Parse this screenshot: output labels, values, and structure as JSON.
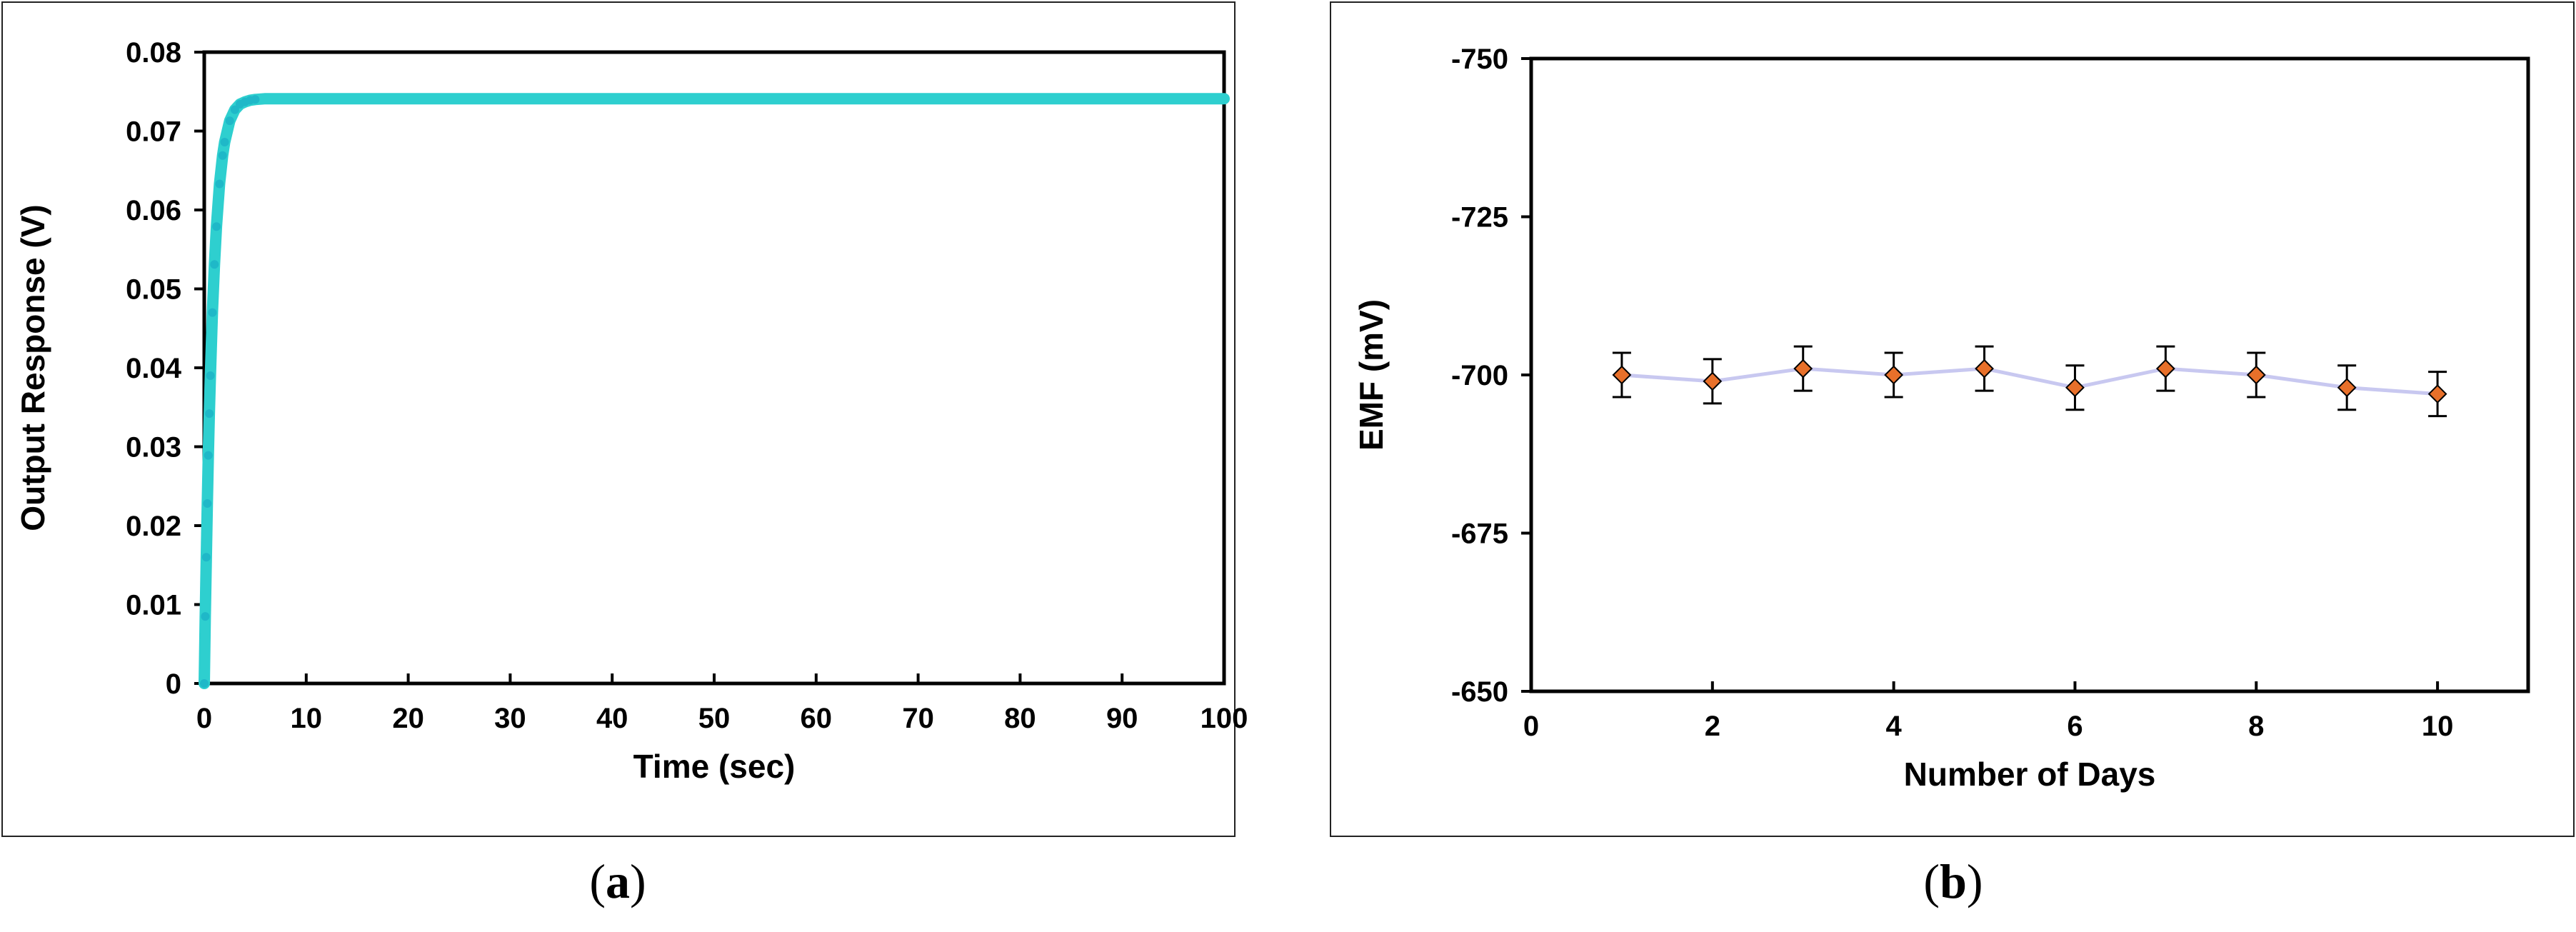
{
  "captions": {
    "a": "a",
    "b": "b"
  },
  "chart_data": [
    {
      "type": "line",
      "title": "",
      "xlabel": "Time (sec)",
      "ylabel": "Output Response (V)",
      "xlim": [
        0,
        100
      ],
      "ylim": [
        0,
        0.08
      ],
      "xticks": [
        0,
        10,
        20,
        30,
        40,
        50,
        60,
        70,
        80,
        90,
        100
      ],
      "yticks": [
        0,
        0.01,
        0.02,
        0.03,
        0.04,
        0.05,
        0.06,
        0.07,
        0.08
      ],
      "xtick_labels": [
        "0",
        "10",
        "20",
        "30",
        "40",
        "50",
        "60",
        "70",
        "80",
        "90",
        "100"
      ],
      "ytick_labels": [
        "0",
        "0.01",
        "0.02",
        "0.03",
        "0.04",
        "0.05",
        "0.06",
        "0.07",
        "0.08"
      ],
      "grid": false,
      "series": [
        {
          "color": "#2ecfcf",
          "x": [
            0,
            0.1,
            0.2,
            0.3,
            0.4,
            0.5,
            0.6,
            0.8,
            1.0,
            1.2,
            1.5,
            1.8,
            2.0,
            2.5,
            3.0,
            3.5,
            4.0,
            4.5,
            5.0,
            6.0,
            7.0,
            8.0,
            10,
            15,
            20,
            30,
            40,
            50,
            60,
            70,
            80,
            90,
            100
          ],
          "y": [
            0.0,
            0.0085,
            0.016,
            0.0228,
            0.0289,
            0.0342,
            0.039,
            0.047,
            0.0531,
            0.0579,
            0.0633,
            0.0669,
            0.0686,
            0.0713,
            0.0727,
            0.0734,
            0.0737,
            0.0739,
            0.074,
            0.0741,
            0.0741,
            0.0741,
            0.0741,
            0.0741,
            0.0741,
            0.0741,
            0.0741,
            0.0741,
            0.0741,
            0.0741,
            0.0741,
            0.0741,
            0.0741
          ]
        }
      ]
    },
    {
      "type": "scatter",
      "title": "",
      "xlabel": "Number of Days",
      "ylabel": "EMF (mV)",
      "xlim": [
        0,
        11
      ],
      "ylim": [
        -650,
        -750
      ],
      "y_axis_inverted": true,
      "xticks": [
        0,
        2,
        4,
        6,
        8,
        10
      ],
      "yticks": [
        -650,
        -675,
        -700,
        -725,
        -750
      ],
      "xtick_labels": [
        "0",
        "2",
        "4",
        "6",
        "8",
        "10"
      ],
      "ytick_labels": [
        "-650",
        "-675",
        "-700",
        "-725",
        "-750"
      ],
      "grid": false,
      "series": [
        {
          "marker_color": "#e8702a",
          "line_color": "#c8c8f0",
          "x": [
            1,
            2,
            3,
            4,
            5,
            6,
            7,
            8,
            9,
            10
          ],
          "y": [
            -700,
            -699,
            -701,
            -700,
            -701,
            -698,
            -701,
            -700,
            -698,
            -697
          ],
          "error": [
            3.5,
            3.5,
            3.5,
            3.5,
            3.5,
            3.5,
            3.5,
            3.5,
            3.5,
            3.5
          ]
        }
      ]
    }
  ]
}
